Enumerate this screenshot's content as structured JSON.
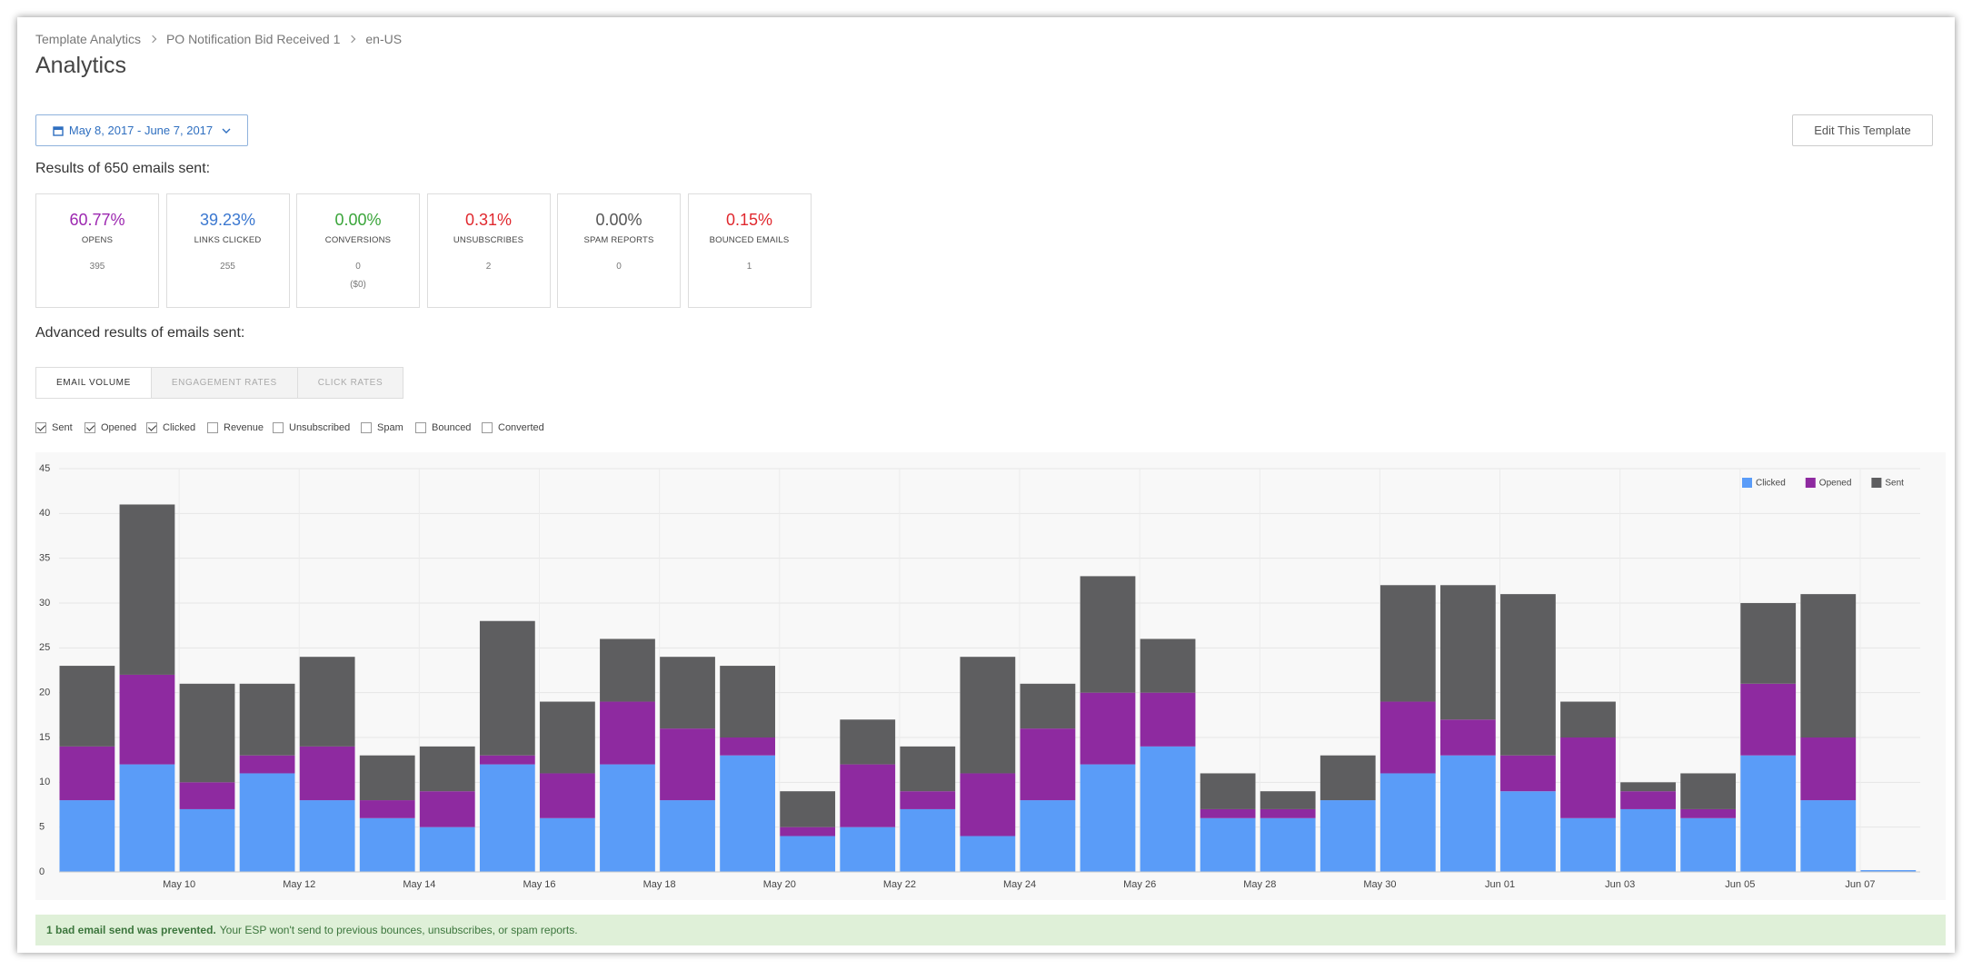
{
  "breadcrumb": [
    "Template Analytics",
    "PO Notification Bid Received 1",
    "en-US"
  ],
  "title": "Analytics",
  "date_range": "May 8, 2017 - June 7, 2017",
  "edit_button": "Edit This Template",
  "results_heading": "Results of 650 emails sent:",
  "cards": [
    {
      "percent": "60.77%",
      "label": "OPENS",
      "count": "395",
      "color": "#9c27b0"
    },
    {
      "percent": "39.23%",
      "label": "LINKS CLICKED",
      "count": "255",
      "color": "#3b78d0"
    },
    {
      "percent": "0.00%",
      "label": "CONVERSIONS",
      "count": "0",
      "extra": "($0)",
      "color": "#3aa53a"
    },
    {
      "percent": "0.31%",
      "label": "UNSUBSCRIBES",
      "count": "2",
      "color": "#e0282e"
    },
    {
      "percent": "0.00%",
      "label": "SPAM REPORTS",
      "count": "0",
      "color": "#555555"
    },
    {
      "percent": "0.15%",
      "label": "BOUNCED EMAILS",
      "count": "1",
      "color": "#e0282e"
    }
  ],
  "advanced_heading": "Advanced results of emails sent:",
  "tabs": [
    {
      "label": "EMAIL VOLUME",
      "active": true
    },
    {
      "label": "ENGAGEMENT RATES",
      "active": false
    },
    {
      "label": "CLICK RATES",
      "active": false
    }
  ],
  "checkboxes": [
    {
      "label": "Sent",
      "checked": true
    },
    {
      "label": "Opened",
      "checked": true
    },
    {
      "label": "Clicked",
      "checked": true
    },
    {
      "label": "Revenue",
      "checked": false
    },
    {
      "label": "Unsubscribed",
      "checked": false
    },
    {
      "label": "Spam",
      "checked": false
    },
    {
      "label": "Bounced",
      "checked": false
    },
    {
      "label": "Converted",
      "checked": false
    }
  ],
  "chart_data": {
    "type": "stacked_bar",
    "categories": [
      null,
      null,
      "May 10",
      null,
      "May 12",
      null,
      "May 14",
      null,
      "May 16",
      null,
      "May 18",
      null,
      "May 20",
      null,
      "May 22",
      null,
      "May 24",
      null,
      "May 26",
      null,
      "May 28",
      null,
      "May 30",
      null,
      "Jun 01",
      null,
      "Jun 03",
      null,
      "Jun 05",
      null,
      "Jun 07"
    ],
    "series": [
      {
        "name": "Clicked",
        "color": "#5a9cf8",
        "values": [
          8,
          12,
          7,
          11,
          8,
          6,
          5,
          12,
          6,
          12,
          8,
          13,
          4,
          5,
          7,
          4,
          8,
          12,
          14,
          6,
          6,
          8,
          11,
          13,
          9,
          6,
          7,
          6,
          13,
          8,
          0.2
        ]
      },
      {
        "name": "Opened",
        "color": "#8e2aa0",
        "values": [
          6,
          10,
          3,
          2,
          6,
          2,
          4,
          1,
          5,
          7,
          8,
          2,
          1,
          7,
          2,
          7,
          8,
          8,
          6,
          1,
          1,
          0,
          8,
          4,
          4,
          9,
          2,
          1,
          8,
          7,
          0
        ]
      },
      {
        "name": "Sent",
        "color": "#5e5e60",
        "values": [
          9,
          19,
          11,
          8,
          10,
          5,
          5,
          15,
          8,
          7,
          8,
          8,
          4,
          5,
          5,
          13,
          5,
          13,
          6,
          4,
          2,
          5,
          13,
          15,
          18,
          4,
          1,
          4,
          9,
          16,
          0
        ]
      }
    ],
    "ylim": [
      0,
      45
    ],
    "yticks": [
      0,
      5,
      10,
      15,
      20,
      25,
      30,
      35,
      40,
      45
    ],
    "grid": true,
    "legend": "top-right"
  },
  "alert": {
    "bold": "1 bad email send was prevented.",
    "text": "Your ESP won't send to previous bounces, unsubscribes, or spam reports."
  }
}
